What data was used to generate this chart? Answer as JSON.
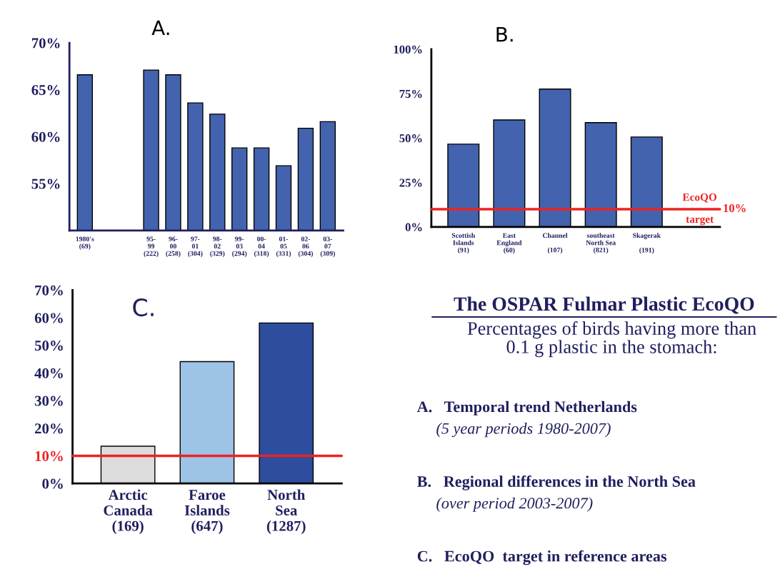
{
  "chart_data": [
    {
      "type": "bar",
      "categories": [
        "1980's\n(69)",
        null,
        null,
        "95-\n99\n(222)",
        "96-\n00\n(258)",
        "97-\n01\n(304)",
        "98-\n02\n(329)",
        "99-\n03\n(294)",
        "00-\n04\n(318)",
        "01-\n05\n(331)",
        "02-\n06\n(304)",
        "03-\n07\n(309)"
      ],
      "values": [
        66.6,
        null,
        null,
        67.1,
        66.6,
        63.6,
        62.4,
        58.8,
        58.8,
        56.9,
        60.9,
        61.6
      ],
      "color": "#4363ae",
      "ylim": [
        50,
        70
      ],
      "yticks": [
        {
          "value": 55,
          "label": "55%"
        },
        {
          "value": 60,
          "label": "60%"
        },
        {
          "value": 65,
          "label": "65%"
        },
        {
          "value": 70,
          "label": "70%"
        }
      ],
      "annotations": [
        "A."
      ],
      "grid": false,
      "legend": false
    },
    {
      "type": "bar",
      "categories": [
        "Scottish\nIslands\n(91)",
        "East\nEngland\n(60)",
        "Channel\n\n(107)",
        "southeast\nNorth Sea\n(821)",
        "Skagerak\n\n(191)"
      ],
      "values": [
        46.6,
        60.2,
        77.6,
        58.7,
        50.6
      ],
      "color": "#4363ae",
      "ylim": [
        0,
        100
      ],
      "yticks": [
        {
          "value": 0,
          "label": "0%"
        },
        {
          "value": 25,
          "label": "25%"
        },
        {
          "value": 50,
          "label": "50%"
        },
        {
          "value": 75,
          "label": "75%"
        },
        {
          "value": 100,
          "label": "100%"
        }
      ],
      "ref_lines": [
        {
          "axis": "y",
          "value": 10,
          "label": "EcoQO\ntarget",
          "color": "#ee2222"
        }
      ],
      "annotations": [
        "B.",
        "10%"
      ],
      "grid": false,
      "legend": false
    },
    {
      "type": "bar",
      "categories": [
        "Arctic\nCanada\n(169)",
        "Faroe\nIslands\n(647)",
        "North\nSea\n(1287)"
      ],
      "values": [
        13.5,
        44.1,
        58.1
      ],
      "colors": [
        "#dcdcdc",
        "#9dc3e6",
        "#2e4d9e"
      ],
      "ylim": [
        0,
        70
      ],
      "yticks": [
        {
          "value": 0,
          "label": "0%"
        },
        {
          "value": 10,
          "label": "10%"
        },
        {
          "value": 20,
          "label": "20%"
        },
        {
          "value": 30,
          "label": "30%"
        },
        {
          "value": 40,
          "label": "40%"
        },
        {
          "value": 50,
          "label": "50%"
        },
        {
          "value": 60,
          "label": "60%"
        },
        {
          "value": 70,
          "label": "70%"
        }
      ],
      "ref_lines": [
        {
          "axis": "y",
          "value": 10,
          "color": "#ee2222"
        }
      ],
      "annotations": [
        "C."
      ],
      "grid": false,
      "legend": false
    },
    {
      "type": "other",
      "title": "The OSPAR Fulmar Plastic EcoQO",
      "subtitle": "Percentages of birds having more than\n0.1 g plastic in the stomach:",
      "annotations": [
        "A.   Temporal trend Netherlands",
        "(5 year periods 1980-2007)",
        "B.   Regional differences in the North Sea",
        "(over period 2003-2007)",
        "C.   EcoQO  target in reference areas"
      ]
    }
  ]
}
